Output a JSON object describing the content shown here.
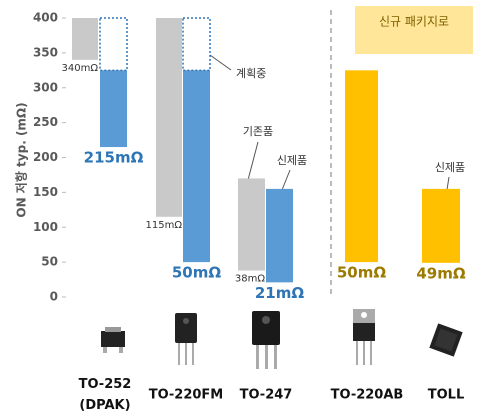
{
  "chart_data": {
    "type": "floating-bar",
    "ylabel": "ON 저항 typ. (mΩ)",
    "ylim": [
      0,
      400
    ],
    "yticks": [
      0,
      50,
      100,
      150,
      200,
      250,
      300,
      350,
      400
    ],
    "categories": [
      "TO-252\n(DPAK)",
      "TO-220FM",
      "TO-247",
      "TO-220AB",
      "TOLL"
    ],
    "series": [
      {
        "color": "#c9c9c9",
        "low": [
          340,
          115,
          38,
          null,
          null
        ],
        "high": [
          400,
          400,
          170,
          null,
          null
        ],
        "value_labels": [
          "340mΩ",
          "115mΩ",
          "38mΩ",
          null,
          null
        ]
      },
      {
        "color": "#5b9bd5",
        "low": [
          215,
          50,
          21,
          null,
          null
        ],
        "high": [
          325,
          325,
          155,
          null,
          null
        ],
        "value_labels": [
          "215mΩ",
          "50mΩ",
          "21mΩ",
          null,
          null
        ]
      },
      {
        "color": "#2e75b6",
        "style": "dotted",
        "low": [
          325,
          325,
          null,
          null,
          null
        ],
        "high": [
          400,
          400,
          null,
          null,
          null
        ]
      },
      {
        "color": "#ffc000",
        "low": [
          null,
          null,
          null,
          50,
          49
        ],
        "high": [
          null,
          null,
          null,
          325,
          155
        ],
        "value_labels": [
          null,
          null,
          null,
          "50mΩ",
          "49mΩ"
        ]
      }
    ],
    "annotations": [
      "계획중",
      "기존품",
      "신제품",
      "신제품"
    ],
    "highlight_box": "신규 패키지로"
  }
}
